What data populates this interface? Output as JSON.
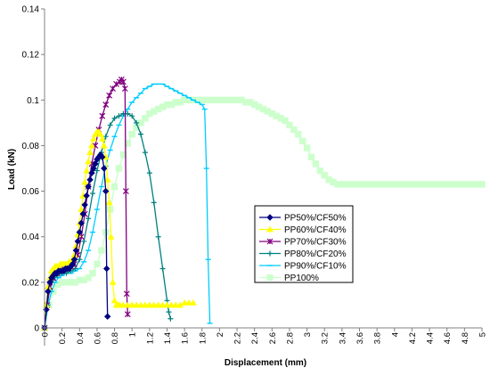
{
  "chart_data": {
    "type": "line",
    "title": "",
    "xlabel": "Displacement (mm)",
    "ylabel": "Load (kN)",
    "xlim": [
      0,
      5
    ],
    "ylim": [
      0,
      0.14
    ],
    "x_ticks": [
      0,
      0.2,
      0.4,
      0.6,
      0.8,
      1,
      1.2,
      1.4,
      1.6,
      1.8,
      2,
      2.2,
      2.4,
      2.6,
      2.8,
      3,
      3.2,
      3.4,
      3.6,
      3.8,
      4,
      4.2,
      4.4,
      4.6,
      4.8,
      5
    ],
    "x_tick_labels": [
      "0",
      "0.2",
      "0.4",
      "0.6",
      "0.8",
      "1",
      "1.2",
      "1.4",
      "1.6",
      "1.8",
      "2",
      "2.2",
      "2.4",
      "2.6",
      "2.8",
      "3",
      "3.2",
      "3.4",
      "3.6",
      "3.8",
      "4",
      "4.2",
      "4.4",
      "4.6",
      "4.8",
      "5"
    ],
    "y_ticks": [
      0,
      0.02,
      0.04,
      0.06,
      0.08,
      0.1,
      0.12,
      0.14
    ],
    "y_tick_labels": [
      "0",
      "0.02",
      "0.04",
      "0.06",
      "0.08",
      "0.1",
      "0.12",
      "0.14"
    ],
    "grid": false,
    "legend_position": "right-center",
    "series": [
      {
        "name": "PP50%/CF50%",
        "color": "#000080",
        "marker": "diamond",
        "x": [
          0.0,
          0.02,
          0.04,
          0.06,
          0.08,
          0.1,
          0.12,
          0.14,
          0.16,
          0.18,
          0.2,
          0.22,
          0.24,
          0.26,
          0.28,
          0.3,
          0.32,
          0.34,
          0.36,
          0.38,
          0.4,
          0.42,
          0.44,
          0.46,
          0.48,
          0.5,
          0.52,
          0.54,
          0.56,
          0.58,
          0.6,
          0.62,
          0.64,
          0.66,
          0.68,
          0.7,
          0.71,
          0.72
        ],
        "y": [
          0.0,
          0.008,
          0.016,
          0.02,
          0.022,
          0.023,
          0.024,
          0.024,
          0.025,
          0.025,
          0.025,
          0.025,
          0.026,
          0.026,
          0.026,
          0.027,
          0.028,
          0.03,
          0.034,
          0.038,
          0.042,
          0.046,
          0.05,
          0.054,
          0.058,
          0.062,
          0.065,
          0.068,
          0.07,
          0.072,
          0.074,
          0.075,
          0.076,
          0.075,
          0.07,
          0.06,
          0.026,
          0.005
        ]
      },
      {
        "name": "PP60%/CF40%",
        "color": "#FFFF00",
        "marker": "triangle",
        "x": [
          0.0,
          0.02,
          0.04,
          0.06,
          0.08,
          0.1,
          0.12,
          0.14,
          0.16,
          0.18,
          0.2,
          0.22,
          0.24,
          0.26,
          0.28,
          0.3,
          0.32,
          0.34,
          0.36,
          0.38,
          0.4,
          0.42,
          0.44,
          0.46,
          0.48,
          0.5,
          0.52,
          0.54,
          0.56,
          0.58,
          0.6,
          0.62,
          0.64,
          0.66,
          0.68,
          0.7,
          0.72,
          0.74,
          0.76,
          0.78,
          0.8,
          0.82,
          0.84,
          0.86,
          0.9,
          0.95,
          1.0,
          1.05,
          1.1,
          1.15,
          1.2,
          1.25,
          1.3,
          1.35,
          1.4,
          1.45,
          1.5,
          1.55,
          1.6,
          1.65,
          1.7
        ],
        "y": [
          0.0,
          0.01,
          0.018,
          0.022,
          0.025,
          0.026,
          0.027,
          0.027,
          0.027,
          0.028,
          0.028,
          0.028,
          0.028,
          0.028,
          0.029,
          0.029,
          0.03,
          0.032,
          0.036,
          0.041,
          0.046,
          0.052,
          0.058,
          0.064,
          0.069,
          0.073,
          0.077,
          0.08,
          0.083,
          0.085,
          0.086,
          0.086,
          0.085,
          0.083,
          0.08,
          0.075,
          0.065,
          0.055,
          0.04,
          0.02,
          0.012,
          0.01,
          0.01,
          0.01,
          0.01,
          0.01,
          0.01,
          0.01,
          0.01,
          0.01,
          0.01,
          0.01,
          0.01,
          0.01,
          0.01,
          0.01,
          0.01,
          0.01,
          0.011,
          0.011,
          0.011
        ]
      },
      {
        "name": "PP70%/CF30%",
        "color": "#800080",
        "marker": "star",
        "x": [
          0.0,
          0.03,
          0.06,
          0.1,
          0.14,
          0.18,
          0.22,
          0.26,
          0.3,
          0.34,
          0.38,
          0.42,
          0.46,
          0.5,
          0.54,
          0.58,
          0.62,
          0.66,
          0.7,
          0.74,
          0.78,
          0.82,
          0.86,
          0.88,
          0.9,
          0.92,
          0.93,
          0.94,
          0.95
        ],
        "y": [
          0.0,
          0.01,
          0.018,
          0.022,
          0.024,
          0.025,
          0.026,
          0.026,
          0.027,
          0.028,
          0.032,
          0.04,
          0.05,
          0.062,
          0.072,
          0.08,
          0.087,
          0.093,
          0.098,
          0.102,
          0.105,
          0.107,
          0.108,
          0.109,
          0.108,
          0.105,
          0.06,
          0.015,
          0.006
        ]
      },
      {
        "name": "PP80%/CF20%",
        "color": "#008080",
        "marker": "plus",
        "x": [
          0.0,
          0.03,
          0.06,
          0.1,
          0.15,
          0.2,
          0.25,
          0.3,
          0.35,
          0.4,
          0.45,
          0.5,
          0.55,
          0.6,
          0.65,
          0.7,
          0.75,
          0.8,
          0.85,
          0.9,
          0.95,
          1.0,
          1.05,
          1.1,
          1.15,
          1.2,
          1.25,
          1.3,
          1.35,
          1.4,
          1.42,
          1.44
        ],
        "y": [
          0.0,
          0.01,
          0.017,
          0.021,
          0.023,
          0.024,
          0.024,
          0.025,
          0.026,
          0.03,
          0.038,
          0.048,
          0.059,
          0.069,
          0.077,
          0.084,
          0.089,
          0.092,
          0.093,
          0.094,
          0.094,
          0.093,
          0.09,
          0.085,
          0.077,
          0.068,
          0.055,
          0.04,
          0.026,
          0.012,
          0.007,
          0.004
        ]
      },
      {
        "name": "PP90%/CF10%",
        "color": "#00CCFF",
        "marker": "dash",
        "x": [
          0.0,
          0.04,
          0.08,
          0.12,
          0.16,
          0.2,
          0.25,
          0.3,
          0.35,
          0.4,
          0.45,
          0.5,
          0.55,
          0.6,
          0.65,
          0.7,
          0.75,
          0.8,
          0.85,
          0.9,
          0.95,
          1.0,
          1.05,
          1.1,
          1.15,
          1.2,
          1.25,
          1.3,
          1.35,
          1.4,
          1.45,
          1.5,
          1.55,
          1.6,
          1.65,
          1.7,
          1.75,
          1.8,
          1.83,
          1.85,
          1.87,
          1.89
        ],
        "y": [
          0.0,
          0.01,
          0.016,
          0.02,
          0.022,
          0.023,
          0.024,
          0.024,
          0.025,
          0.026,
          0.029,
          0.034,
          0.042,
          0.052,
          0.062,
          0.071,
          0.078,
          0.084,
          0.089,
          0.093,
          0.096,
          0.099,
          0.101,
          0.103,
          0.105,
          0.106,
          0.107,
          0.107,
          0.107,
          0.106,
          0.105,
          0.104,
          0.103,
          0.102,
          0.101,
          0.1,
          0.099,
          0.098,
          0.096,
          0.07,
          0.03,
          0.002
        ]
      },
      {
        "name": "PP100%",
        "color": "#CCFFCC",
        "marker": "square",
        "x": [
          0.0,
          0.05,
          0.1,
          0.15,
          0.2,
          0.25,
          0.3,
          0.35,
          0.4,
          0.45,
          0.5,
          0.55,
          0.6,
          0.65,
          0.7,
          0.75,
          0.8,
          0.85,
          0.9,
          0.95,
          1.0,
          1.05,
          1.1,
          1.15,
          1.2,
          1.25,
          1.3,
          1.35,
          1.4,
          1.45,
          1.5,
          1.55,
          1.6,
          1.65,
          1.7,
          1.75,
          1.8,
          1.85,
          1.9,
          1.95,
          2.0,
          2.05,
          2.1,
          2.15,
          2.2,
          2.25,
          2.3,
          2.35,
          2.4,
          2.45,
          2.5,
          2.55,
          2.6,
          2.65,
          2.7,
          2.75,
          2.8,
          2.85,
          2.9,
          2.95,
          3.0,
          3.05,
          3.1,
          3.15,
          3.2,
          3.25,
          3.3,
          3.35,
          3.4,
          3.45,
          3.5,
          3.55,
          3.6,
          3.65,
          3.7,
          3.75,
          3.8,
          3.85,
          3.9,
          3.95,
          4.0,
          4.05,
          4.1,
          4.15,
          4.2,
          4.25,
          4.3,
          4.35,
          4.4,
          4.45,
          4.5,
          4.55,
          4.6,
          4.65,
          4.7,
          4.75,
          4.8,
          4.85,
          4.9,
          4.95,
          5.0
        ],
        "y": [
          0.0,
          0.01,
          0.016,
          0.019,
          0.02,
          0.02,
          0.02,
          0.02,
          0.021,
          0.021,
          0.022,
          0.024,
          0.028,
          0.034,
          0.042,
          0.052,
          0.062,
          0.07,
          0.076,
          0.081,
          0.085,
          0.088,
          0.09,
          0.092,
          0.094,
          0.095,
          0.096,
          0.097,
          0.098,
          0.098,
          0.099,
          0.099,
          0.1,
          0.1,
          0.1,
          0.1,
          0.1,
          0.1,
          0.1,
          0.1,
          0.1,
          0.1,
          0.1,
          0.1,
          0.1,
          0.1,
          0.099,
          0.099,
          0.098,
          0.097,
          0.096,
          0.095,
          0.094,
          0.093,
          0.092,
          0.091,
          0.089,
          0.087,
          0.085,
          0.082,
          0.079,
          0.075,
          0.072,
          0.069,
          0.067,
          0.065,
          0.064,
          0.063,
          0.063,
          0.063,
          0.063,
          0.063,
          0.063,
          0.063,
          0.063,
          0.063,
          0.063,
          0.063,
          0.063,
          0.063,
          0.063,
          0.063,
          0.063,
          0.063,
          0.063,
          0.063,
          0.063,
          0.063,
          0.063,
          0.063,
          0.063,
          0.063,
          0.063,
          0.063,
          0.063,
          0.063,
          0.063,
          0.063,
          0.063,
          0.063,
          0.063
        ]
      }
    ]
  }
}
